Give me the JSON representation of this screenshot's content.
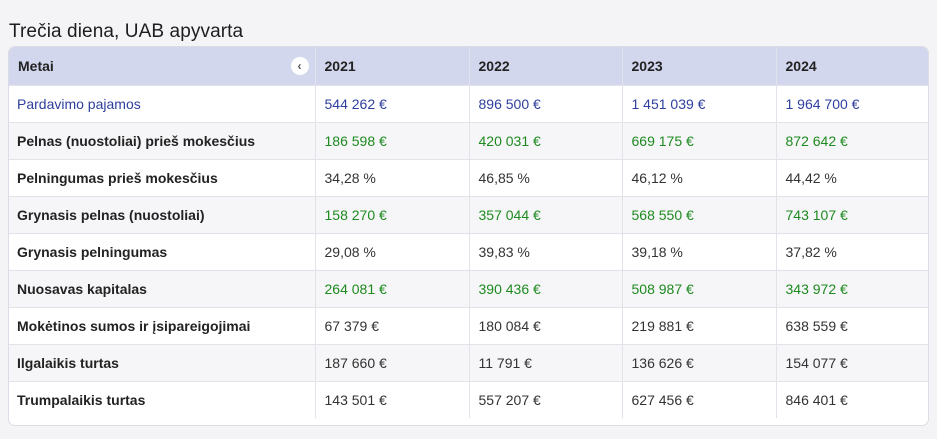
{
  "page": {
    "title": "Trečia diena, UAB apyvarta"
  },
  "table": {
    "header": {
      "label": "Metai",
      "years": [
        "2021",
        "2022",
        "2023",
        "2024"
      ]
    },
    "rows": [
      {
        "label": "Pardavimo pajamos",
        "style": "blue",
        "values": [
          "544 262 €",
          "896 500 €",
          "1 451 039 €",
          "1 964 700 €"
        ]
      },
      {
        "label": "Pelnas (nuostoliai) prieš mokesčius",
        "style": "green",
        "values": [
          "186 598 €",
          "420 031 €",
          "669 175 €",
          "872 642 €"
        ]
      },
      {
        "label": "Pelningumas prieš mokesčius",
        "style": "plain",
        "values": [
          "34,28 %",
          "46,85 %",
          "46,12 %",
          "44,42 %"
        ]
      },
      {
        "label": "Grynasis pelnas (nuostoliai)",
        "style": "green",
        "values": [
          "158 270 €",
          "357 044 €",
          "568 550 €",
          "743 107 €"
        ]
      },
      {
        "label": "Grynasis pelningumas",
        "style": "plain",
        "values": [
          "29,08 %",
          "39,83 %",
          "39,18 %",
          "37,82 %"
        ]
      },
      {
        "label": "Nuosavas kapitalas",
        "style": "green",
        "values": [
          "264 081 €",
          "390 436 €",
          "508 987 €",
          "343 972 €"
        ]
      },
      {
        "label": "Mokėtinos sumos ir įsipareigojimai",
        "style": "plain",
        "values": [
          "67 379 €",
          "180 084 €",
          "219 881 €",
          "638 559 €"
        ]
      },
      {
        "label": "Ilgalaikis turtas",
        "style": "plain",
        "values": [
          "187 660 €",
          "11 791 €",
          "136 626 €",
          "154 077 €"
        ]
      },
      {
        "label": "Trumpalaikis turtas",
        "style": "plain",
        "values": [
          "143 501 €",
          "557 207 €",
          "627 456 €",
          "846 401 €"
        ]
      }
    ]
  },
  "colors": {
    "header_bg": "#d3d7ee",
    "blue_text": "#2e3f9e",
    "green_text": "#1d8a1f"
  },
  "icons": {
    "collapse": "chevron-left-icon"
  }
}
